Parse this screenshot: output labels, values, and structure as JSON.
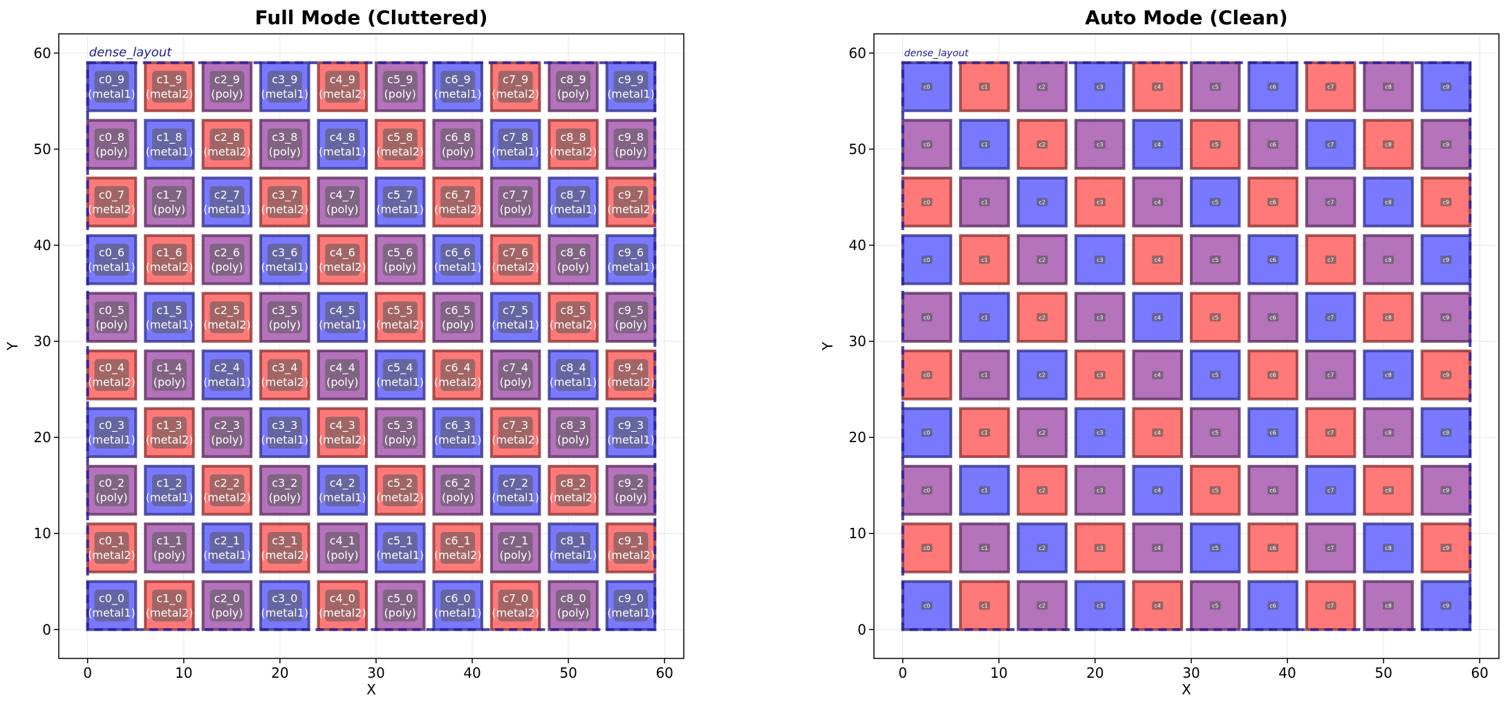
{
  "chart_data": [
    {
      "type": "layout",
      "title": "Full Mode (Cluttered)",
      "xlabel": "X",
      "ylabel": "Y",
      "xlim": [
        -3,
        62
      ],
      "ylim": [
        -3,
        62
      ],
      "xticks": [
        "0",
        "10",
        "20",
        "30",
        "40",
        "50",
        "60"
      ],
      "yticks": [
        "0",
        "10",
        "20",
        "30",
        "40",
        "50",
        "60"
      ],
      "grid": true,
      "layout_label": "dense_layout",
      "label_mode": "full",
      "columns": 10,
      "rows": 10,
      "cell_pitch": 6,
      "cell_size": 5,
      "layers": {
        "metal1": "#6262ff",
        "metal2": "#ff6262",
        "poly": "#a85bb0"
      },
      "cell_labels": [
        [
          "c0_0\n(metal1)",
          "c1_0\n(metal2)",
          "c2_0\n(poly)",
          "c3_0\n(metal1)",
          "c4_0\n(metal2)",
          "c5_0\n(poly)",
          "c6_0\n(metal1)",
          "c7_0\n(metal2)",
          "c8_0\n(poly)",
          "c9_0\n(metal1)"
        ],
        [
          "c0_1\n(metal2)",
          "c1_1\n(poly)",
          "c2_1\n(metal1)",
          "c3_1\n(metal2)",
          "c4_1\n(poly)",
          "c5_1\n(metal1)",
          "c6_1\n(metal2)",
          "c7_1\n(poly)",
          "c8_1\n(metal1)",
          "c9_1\n(metal2)"
        ],
        [
          "c0_2\n(poly)",
          "c1_2\n(metal1)",
          "c2_2\n(metal2)",
          "c3_2\n(poly)",
          "c4_2\n(metal1)",
          "c5_2\n(metal2)",
          "c6_2\n(poly)",
          "c7_2\n(metal1)",
          "c8_2\n(metal2)",
          "c9_2\n(poly)"
        ],
        [
          "c0_3\n(metal1)",
          "c1_3\n(metal2)",
          "c2_3\n(poly)",
          "c3_3\n(metal1)",
          "c4_3\n(metal2)",
          "c5_3\n(poly)",
          "c6_3\n(metal1)",
          "c7_3\n(metal2)",
          "c8_3\n(poly)",
          "c9_3\n(metal1)"
        ],
        [
          "c0_4\n(metal2)",
          "c1_4\n(poly)",
          "c2_4\n(metal1)",
          "c3_4\n(metal2)",
          "c4_4\n(poly)",
          "c5_4\n(metal1)",
          "c6_4\n(metal2)",
          "c7_4\n(poly)",
          "c8_4\n(metal1)",
          "c9_4\n(metal2)"
        ],
        [
          "c0_5\n(poly)",
          "c1_5\n(metal1)",
          "c2_5\n(metal2)",
          "c3_5\n(poly)",
          "c4_5\n(metal1)",
          "c5_5\n(metal2)",
          "c6_5\n(poly)",
          "c7_5\n(metal1)",
          "c8_5\n(metal2)",
          "c9_5\n(poly)"
        ],
        [
          "c0_6\n(metal1)",
          "c1_6\n(metal2)",
          "c2_6\n(poly)",
          "c3_6\n(metal1)",
          "c4_6\n(metal2)",
          "c5_6\n(poly)",
          "c6_6\n(metal1)",
          "c7_6\n(metal2)",
          "c8_6\n(poly)",
          "c9_6\n(metal1)"
        ],
        [
          "c0_7\n(metal2)",
          "c1_7\n(poly)",
          "c2_7\n(metal1)",
          "c3_7\n(metal2)",
          "c4_7\n(poly)",
          "c5_7\n(metal1)",
          "c6_7\n(metal2)",
          "c7_7\n(poly)",
          "c8_7\n(metal1)",
          "c9_7\n(metal2)"
        ],
        [
          "c0_8\n(poly)",
          "c1_8\n(metal1)",
          "c2_8\n(metal2)",
          "c3_8\n(poly)",
          "c4_8\n(metal1)",
          "c5_8\n(metal2)",
          "c6_8\n(poly)",
          "c7_8\n(metal1)",
          "c8_8\n(metal2)",
          "c9_8\n(poly)"
        ],
        [
          "c0_9\n(metal1)",
          "c1_9\n(metal2)",
          "c2_9\n(poly)",
          "c3_9\n(metal1)",
          "c4_9\n(metal2)",
          "c5_9\n(poly)",
          "c6_9\n(metal1)",
          "c7_9\n(metal2)",
          "c8_9\n(poly)",
          "c9_9\n(metal1)"
        ]
      ]
    },
    {
      "type": "layout",
      "title": "Auto Mode (Clean)",
      "xlabel": "X",
      "ylabel": "Y",
      "xlim": [
        -3,
        62
      ],
      "ylim": [
        -3,
        62
      ],
      "xticks": [
        "0",
        "10",
        "20",
        "30",
        "40",
        "50",
        "60"
      ],
      "yticks": [
        "0",
        "10",
        "20",
        "30",
        "40",
        "50",
        "60"
      ],
      "grid": true,
      "layout_label": "dense_layout",
      "label_mode": "auto",
      "columns": 10,
      "rows": 10,
      "cell_pitch": 6,
      "cell_size": 5,
      "layers": {
        "metal1": "#6262ff",
        "metal2": "#ff6262",
        "poly": "#a85bb0"
      },
      "column_labels": [
        "c0",
        "c1",
        "c2",
        "c3",
        "c4",
        "c5",
        "c6",
        "c7",
        "c8",
        "c9"
      ]
    }
  ]
}
